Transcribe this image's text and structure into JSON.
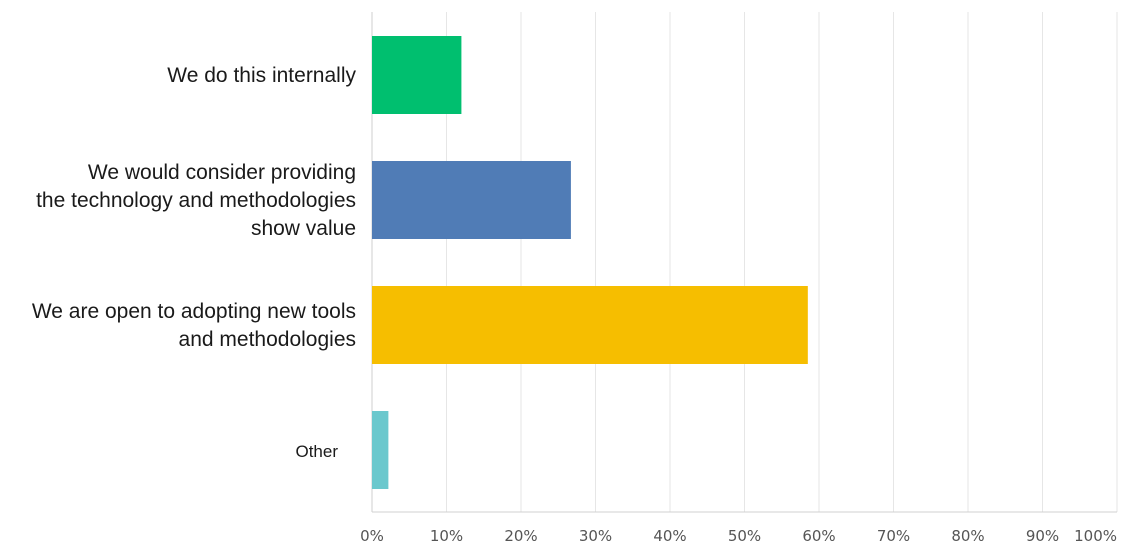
{
  "chart_data": {
    "type": "bar",
    "orientation": "horizontal",
    "categories": [
      [
        "We do this internally"
      ],
      [
        "We would consider providing",
        "the technology and methodologies",
        "show value"
      ],
      [
        "We are open to adopting new tools",
        "and methodologies"
      ],
      [
        "Other"
      ]
    ],
    "values": [
      12,
      26.7,
      58.5,
      2.2
    ],
    "colors": [
      "#00BF6F",
      "#507CB6",
      "#F6BE00",
      "#6BC8CD"
    ],
    "xlim": [
      0,
      100
    ],
    "x_ticks": [
      "0%",
      "10%",
      "20%",
      "30%",
      "40%",
      "50%",
      "60%",
      "70%",
      "80%",
      "90%",
      "100%"
    ],
    "grid": true,
    "legend": "none"
  }
}
